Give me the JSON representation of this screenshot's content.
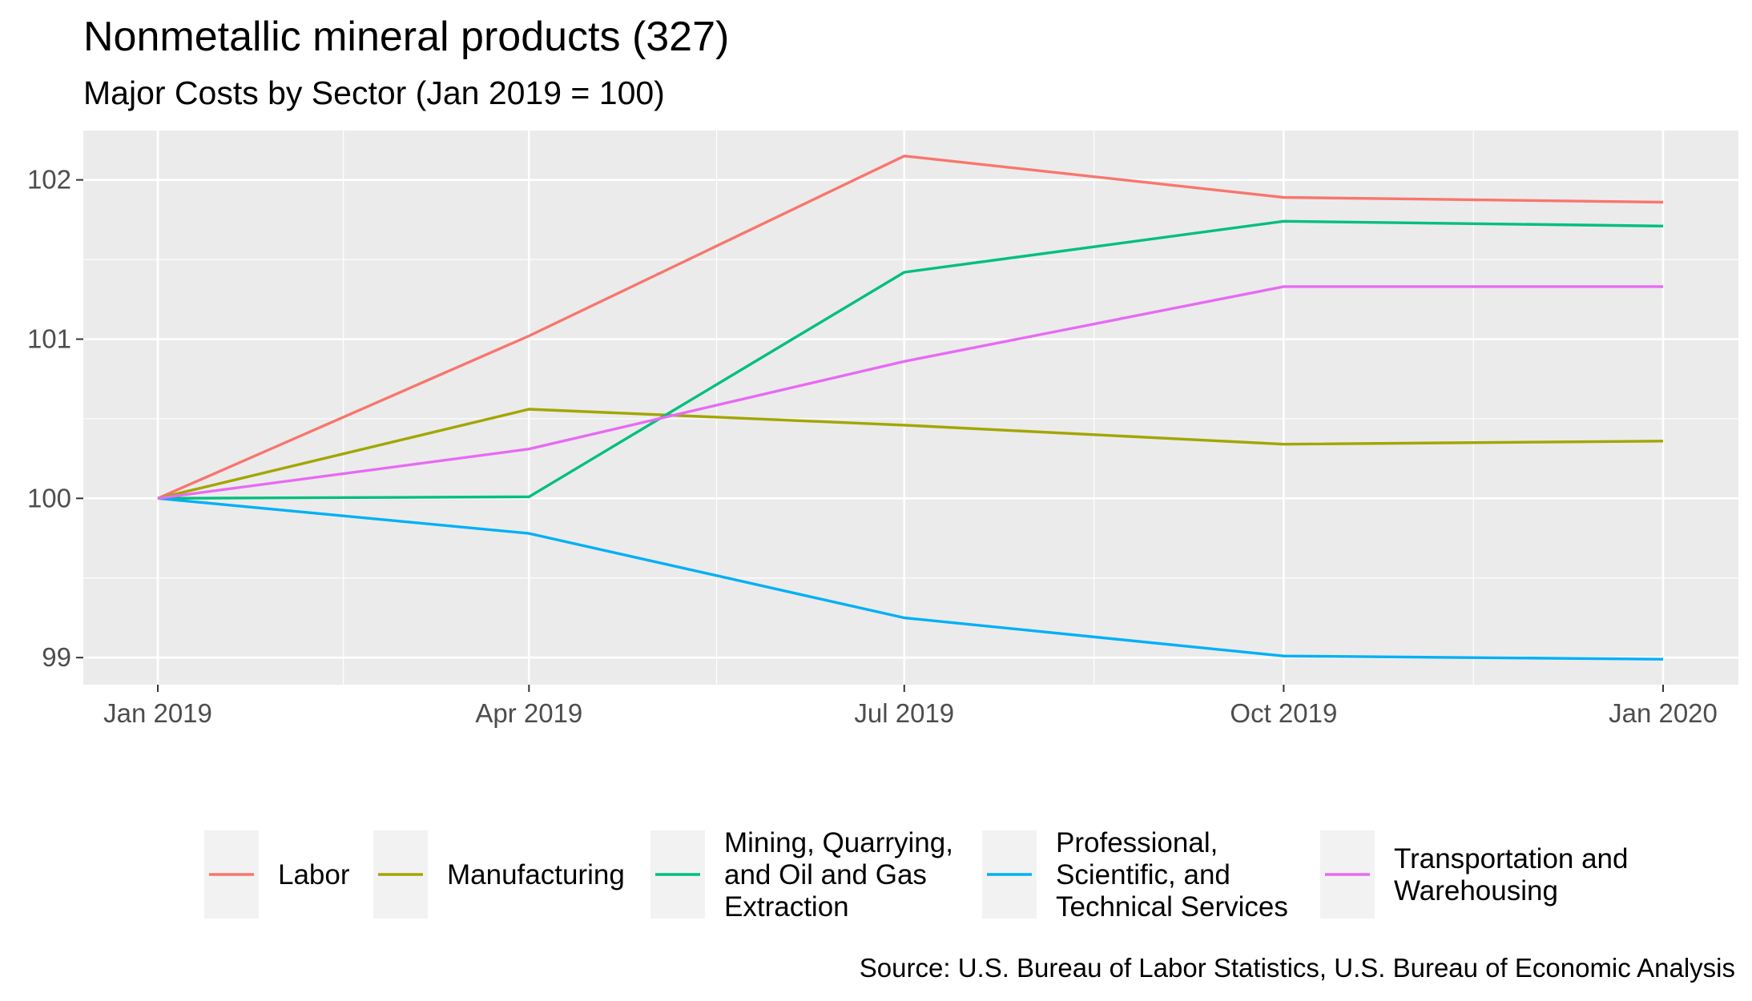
{
  "chart_data": {
    "type": "line",
    "title": "Nonmetallic mineral products (327)",
    "subtitle": "Major Costs by Sector (Jan 2019 = 100)",
    "caption": "Source: U.S. Bureau of Labor Statistics, U.S. Bureau of Economic Analysis",
    "x": [
      "2019-01-01",
      "2019-04-01",
      "2019-07-01",
      "2019-10-01",
      "2020-01-01"
    ],
    "xticks": [
      "Jan 2019",
      "Apr 2019",
      "Jul 2019",
      "Oct 2019",
      "Jan 2020"
    ],
    "yticks": [
      "99",
      "100",
      "101",
      "102"
    ],
    "ylim": [
      98.83,
      102.31
    ],
    "grid": true,
    "legend_position": "bottom",
    "series": [
      {
        "name": "Labor",
        "color": "#F8766D",
        "values": [
          100.0,
          101.02,
          102.15,
          101.89,
          101.86
        ]
      },
      {
        "name": "Manufacturing",
        "color": "#A3A500",
        "values": [
          100.0,
          100.56,
          100.46,
          100.34,
          100.36
        ]
      },
      {
        "name": "Mining, Quarrying, and Oil and Gas Extraction",
        "legend_lines": [
          "Mining, Quarrying,",
          "and Oil and Gas",
          "Extraction"
        ],
        "color": "#00BF7D",
        "values": [
          100.0,
          100.01,
          101.42,
          101.74,
          101.71
        ]
      },
      {
        "name": "Professional, Scientific, and Technical Services",
        "legend_lines": [
          "Professional,",
          "Scientific, and",
          "Technical Services"
        ],
        "color": "#00B0F6",
        "values": [
          100.0,
          99.78,
          99.25,
          99.01,
          98.99
        ]
      },
      {
        "name": "Transportation and Warehousing",
        "legend_lines": [
          "Transportation and",
          "Warehousing"
        ],
        "color": "#E76BF3",
        "values": [
          100.0,
          100.31,
          100.86,
          101.33,
          101.33
        ]
      }
    ]
  }
}
